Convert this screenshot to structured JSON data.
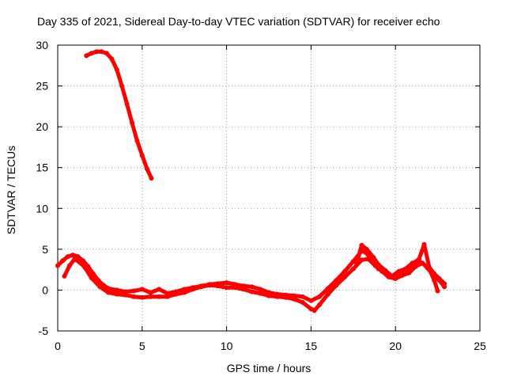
{
  "chart_data": {
    "type": "scatter",
    "title": "Day 335 of 2021, Sidereal Day-to-day VTEC variation (SDTVAR) for receiver echo",
    "xlabel": "GPS time / hours",
    "ylabel": "SDTVAR / TECUs",
    "xlim": [
      0,
      25
    ],
    "ylim": [
      -5,
      30
    ],
    "xticks": [
      0,
      5,
      10,
      15,
      20,
      25
    ],
    "yticks": [
      -5,
      0,
      5,
      10,
      15,
      20,
      25,
      30
    ],
    "grid": true,
    "legend": "none",
    "series_color": "#ff0000",
    "series": [
      {
        "name": "segment-1",
        "points": [
          [
            1.7,
            28.7
          ],
          [
            2.0,
            29.0
          ],
          [
            2.3,
            29.2
          ],
          [
            2.6,
            29.2
          ],
          [
            2.9,
            29.0
          ],
          [
            3.2,
            28.3
          ],
          [
            3.5,
            27.0
          ],
          [
            3.8,
            25.0
          ],
          [
            4.1,
            22.8
          ],
          [
            4.4,
            20.5
          ],
          [
            4.7,
            18.3
          ],
          [
            5.0,
            16.5
          ],
          [
            5.3,
            14.8
          ],
          [
            5.55,
            13.7
          ]
        ]
      },
      {
        "name": "segment-2",
        "points": [
          [
            0.0,
            3.0
          ],
          [
            0.3,
            3.6
          ],
          [
            0.6,
            4.1
          ],
          [
            0.9,
            4.3
          ],
          [
            1.2,
            4.1
          ],
          [
            1.5,
            3.6
          ],
          [
            1.8,
            2.9
          ],
          [
            2.1,
            2.0
          ],
          [
            2.4,
            1.2
          ],
          [
            2.7,
            0.6
          ],
          [
            3.0,
            0.2
          ],
          [
            3.5,
            0.0
          ],
          [
            4.0,
            -0.2
          ],
          [
            4.5,
            -0.1
          ],
          [
            5.0,
            0.1
          ],
          [
            5.5,
            -0.3
          ],
          [
            6.0,
            0.1
          ],
          [
            6.5,
            -0.4
          ],
          [
            7.0,
            -0.2
          ],
          [
            7.5,
            0.1
          ],
          [
            8.0,
            0.3
          ],
          [
            8.5,
            0.5
          ],
          [
            9.0,
            0.7
          ],
          [
            9.5,
            0.8
          ],
          [
            10.0,
            0.9
          ],
          [
            10.5,
            0.7
          ],
          [
            11.0,
            0.5
          ],
          [
            11.5,
            0.4
          ],
          [
            12.0,
            0.1
          ],
          [
            12.5,
            -0.3
          ],
          [
            13.0,
            -0.5
          ],
          [
            13.5,
            -0.6
          ],
          [
            14.0,
            -0.7
          ],
          [
            14.5,
            -0.8
          ],
          [
            15.0,
            -1.3
          ],
          [
            15.5,
            -0.8
          ],
          [
            16.0,
            0.2
          ],
          [
            16.5,
            1.2
          ],
          [
            17.0,
            2.3
          ],
          [
            17.5,
            3.5
          ],
          [
            18.0,
            4.8
          ],
          [
            18.3,
            4.5
          ],
          [
            18.6,
            3.5
          ],
          [
            19.0,
            2.6
          ],
          [
            19.5,
            2.0
          ],
          [
            20.0,
            1.6
          ],
          [
            20.3,
            2.0
          ],
          [
            20.6,
            2.4
          ],
          [
            21.0,
            3.0
          ],
          [
            21.4,
            3.8
          ],
          [
            21.7,
            5.6
          ],
          [
            22.0,
            2.8
          ],
          [
            22.3,
            2.0
          ],
          [
            22.6,
            1.4
          ],
          [
            22.9,
            0.8
          ]
        ]
      },
      {
        "name": "segment-3",
        "points": [
          [
            0.4,
            1.7
          ],
          [
            0.7,
            3.0
          ],
          [
            1.0,
            3.8
          ],
          [
            1.3,
            3.4
          ],
          [
            1.6,
            2.8
          ],
          [
            2.0,
            1.5
          ],
          [
            2.5,
            0.4
          ],
          [
            3.0,
            -0.3
          ],
          [
            3.5,
            -0.5
          ],
          [
            4.0,
            -0.6
          ],
          [
            4.5,
            -0.8
          ],
          [
            5.0,
            -0.9
          ],
          [
            5.5,
            -0.8
          ],
          [
            6.0,
            -0.8
          ],
          [
            6.5,
            -0.8
          ],
          [
            7.0,
            -0.5
          ],
          [
            7.5,
            -0.3
          ],
          [
            8.0,
            0.1
          ],
          [
            8.5,
            0.4
          ],
          [
            9.0,
            0.6
          ],
          [
            9.5,
            0.5
          ],
          [
            10.0,
            0.3
          ],
          [
            10.5,
            0.3
          ],
          [
            11.0,
            0.1
          ],
          [
            11.5,
            -0.2
          ],
          [
            12.0,
            -0.4
          ],
          [
            12.5,
            -0.7
          ],
          [
            13.0,
            -0.8
          ],
          [
            13.5,
            -0.9
          ],
          [
            14.0,
            -1.1
          ],
          [
            14.5,
            -1.5
          ],
          [
            15.0,
            -2.3
          ],
          [
            15.2,
            -2.5
          ],
          [
            15.5,
            -1.8
          ],
          [
            16.0,
            -0.5
          ],
          [
            16.5,
            0.6
          ],
          [
            17.0,
            1.6
          ],
          [
            17.5,
            2.6
          ],
          [
            18.0,
            3.7
          ],
          [
            18.4,
            3.8
          ],
          [
            18.8,
            3.0
          ],
          [
            19.2,
            2.3
          ],
          [
            19.6,
            1.6
          ],
          [
            20.0,
            1.4
          ],
          [
            20.4,
            1.8
          ],
          [
            20.8,
            2.1
          ],
          [
            21.2,
            2.9
          ],
          [
            21.6,
            3.3
          ],
          [
            22.0,
            2.6
          ],
          [
            22.3,
            1.2
          ],
          [
            22.5,
            -0.1
          ]
        ]
      },
      {
        "name": "segment-4",
        "points": [
          [
            17.7,
            3.2
          ],
          [
            18.0,
            5.5
          ],
          [
            18.3,
            5.0
          ],
          [
            18.7,
            4.0
          ],
          [
            19.0,
            3.1
          ],
          [
            19.4,
            2.4
          ],
          [
            19.8,
            1.7
          ],
          [
            20.2,
            2.3
          ],
          [
            20.6,
            2.6
          ],
          [
            21.0,
            3.3
          ],
          [
            21.3,
            3.6
          ],
          [
            21.6,
            3.3
          ],
          [
            21.9,
            2.7
          ],
          [
            22.2,
            1.9
          ],
          [
            22.6,
            1.2
          ],
          [
            22.9,
            0.4
          ]
        ]
      }
    ]
  }
}
